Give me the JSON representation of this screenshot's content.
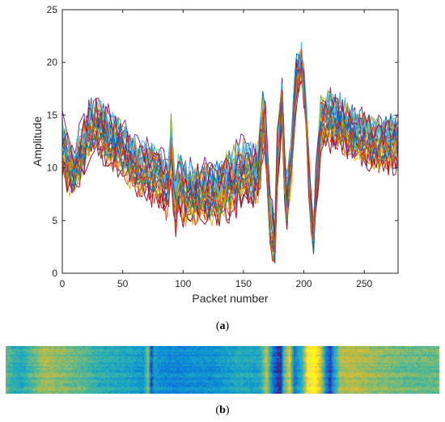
{
  "chart_data": [
    {
      "type": "line",
      "panel_label": "(a)",
      "xlabel": "Packet number",
      "ylabel": "Amplitude",
      "xlim": [
        0,
        278
      ],
      "ylim": [
        0,
        25
      ],
      "xticks": [
        0,
        50,
        100,
        150,
        200,
        250
      ],
      "yticks": [
        0,
        5,
        10,
        15,
        20,
        25
      ],
      "grid": false,
      "legend": "none",
      "series_count": 30,
      "series_colors": [
        "#0072bd",
        "#d95319",
        "#edb120",
        "#7e2f8e",
        "#77ac30",
        "#4dbeee",
        "#a2142f"
      ],
      "mean_profile": {
        "x": [
          0,
          5,
          10,
          15,
          20,
          25,
          30,
          40,
          50,
          60,
          70,
          80,
          88,
          91,
          93,
          95,
          100,
          110,
          120,
          130,
          140,
          150,
          160,
          163,
          167,
          172,
          176,
          178,
          182,
          185,
          190,
          193,
          198,
          202,
          205,
          208,
          210,
          214,
          220,
          230,
          240,
          250,
          260,
          270,
          278
        ],
        "y": [
          12,
          10,
          9.5,
          11,
          12.5,
          14,
          13.5,
          12.5,
          11.5,
          10,
          9.5,
          9,
          8,
          13,
          4,
          8.5,
          7.5,
          7,
          7.5,
          7.5,
          8.5,
          9.5,
          9,
          9.5,
          15,
          5,
          2.5,
          11,
          16,
          6,
          11,
          18,
          20,
          15,
          7,
          3,
          8,
          14,
          14.5,
          14,
          13,
          12.5,
          12,
          12,
          12.5
        ]
      }
    },
    {
      "type": "heatmap",
      "panel_label": "(b)",
      "colormap": "parula",
      "columns": 278,
      "rows": 30,
      "colors": [
        "#352a87",
        "#1e62de",
        "#0a89d8",
        "#1ba9c1",
        "#4ab798",
        "#98bc60",
        "#dcb92d",
        "#f9d84b",
        "#f9fb0e"
      ]
    }
  ]
}
